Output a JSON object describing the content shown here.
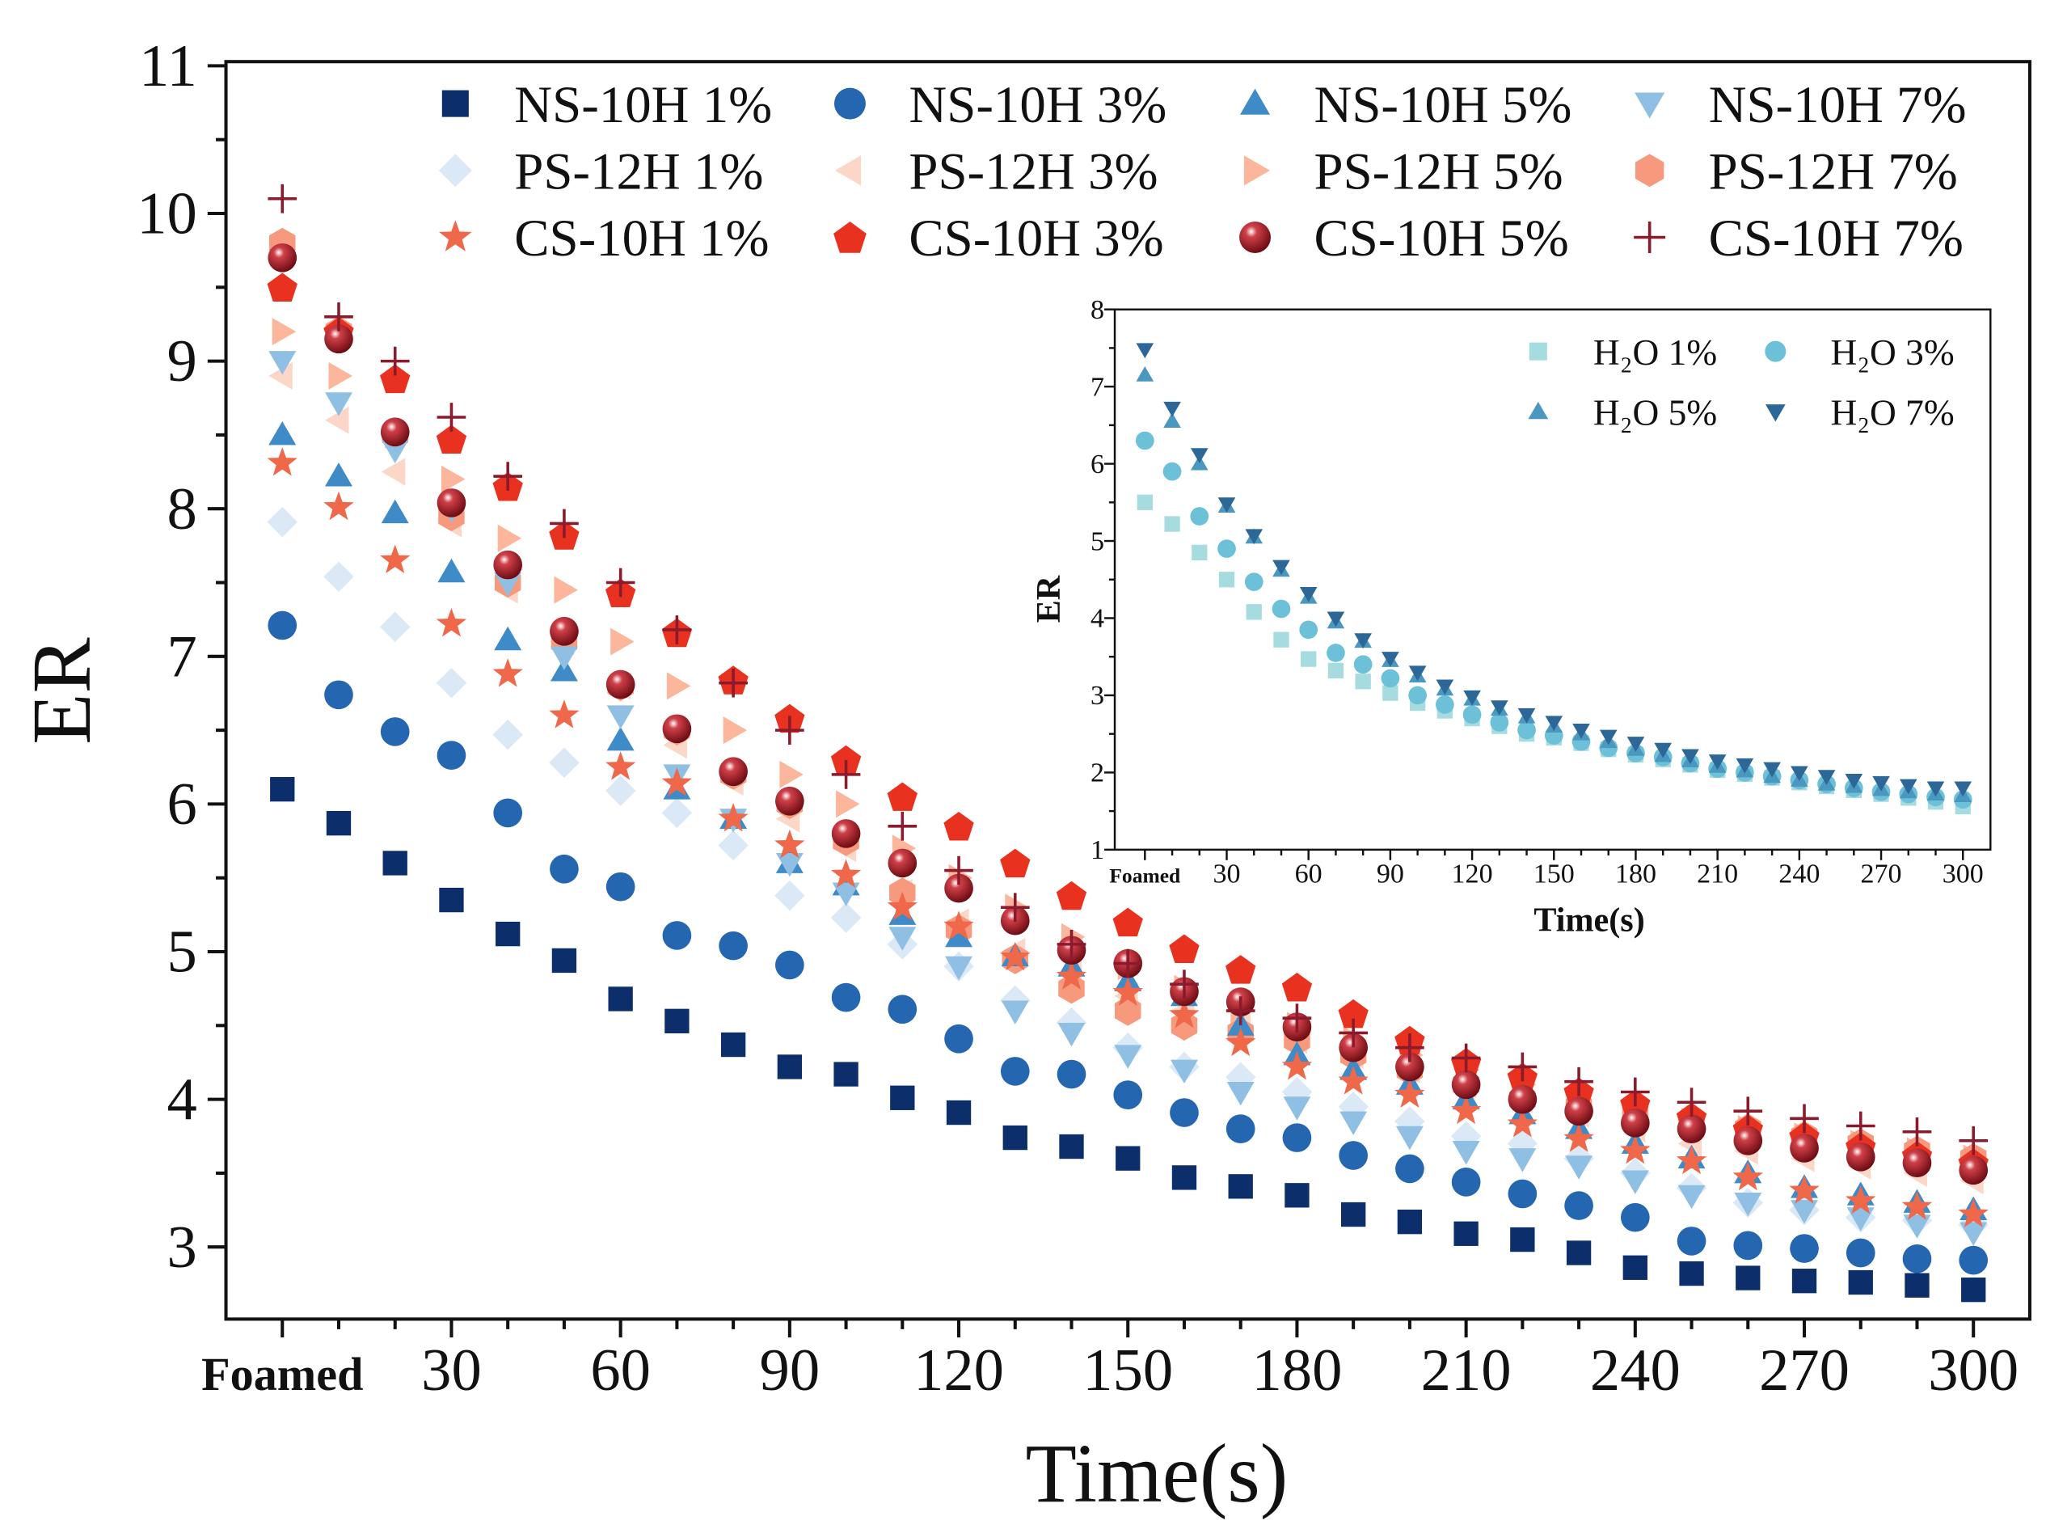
{
  "chart_data": {
    "type": "scatter",
    "xlabel": "Time(s)",
    "ylabel": "ER",
    "xlim": [
      0,
      300
    ],
    "ylim": [
      3,
      11
    ],
    "x_ticks": [
      "Foamed",
      "30",
      "60",
      "90",
      "120",
      "150",
      "180",
      "210",
      "240",
      "270",
      "300"
    ],
    "y_ticks": [
      "3",
      "4",
      "5",
      "6",
      "7",
      "8",
      "9",
      "10",
      "11"
    ],
    "x": [
      0,
      10,
      20,
      30,
      40,
      50,
      60,
      70,
      80,
      90,
      100,
      110,
      120,
      130,
      140,
      150,
      160,
      170,
      180,
      190,
      200,
      210,
      220,
      230,
      240,
      250,
      260,
      270,
      280,
      290,
      300
    ],
    "legend_position": "top",
    "series": [
      {
        "name": "NS-10H 1%",
        "marker": "square",
        "color": "#0c2e6a",
        "values": [
          6.1,
          5.87,
          5.6,
          5.35,
          5.12,
          4.94,
          4.68,
          4.53,
          4.37,
          4.22,
          4.17,
          4.01,
          3.91,
          3.74,
          3.68,
          3.6,
          3.47,
          3.41,
          3.35,
          3.22,
          3.17,
          3.09,
          3.05,
          2.96,
          2.86,
          2.82,
          2.79,
          2.77,
          2.76,
          2.74,
          2.71
        ]
      },
      {
        "name": "NS-10H 3%",
        "marker": "circle",
        "color": "#2466b0",
        "values": [
          7.21,
          6.74,
          6.49,
          6.33,
          5.94,
          5.56,
          5.44,
          5.11,
          5.04,
          4.91,
          4.69,
          4.61,
          4.41,
          4.19,
          4.17,
          4.03,
          3.91,
          3.8,
          3.74,
          3.62,
          3.53,
          3.44,
          3.36,
          3.28,
          3.2,
          3.04,
          3.01,
          2.99,
          2.96,
          2.92,
          2.91
        ]
      },
      {
        "name": "NS-10H 5%",
        "marker": "triangle-up",
        "color": "#3f8bc7",
        "values": [
          8.5,
          8.22,
          7.97,
          7.57,
          7.11,
          6.9,
          6.43,
          6.1,
          5.9,
          5.6,
          5.45,
          5.25,
          5.1,
          4.97,
          4.9,
          4.8,
          4.7,
          4.5,
          4.3,
          4.2,
          4.1,
          4.0,
          3.9,
          3.8,
          3.7,
          3.6,
          3.5,
          3.4,
          3.35,
          3.3,
          3.25
        ]
      },
      {
        "name": "NS-10H 7%",
        "marker": "triangle-down",
        "color": "#8fc0e4",
        "values": [
          9.0,
          8.72,
          8.4,
          8.0,
          7.5,
          7.0,
          6.6,
          6.2,
          5.9,
          5.6,
          5.4,
          5.1,
          4.9,
          4.6,
          4.45,
          4.3,
          4.2,
          4.05,
          3.95,
          3.85,
          3.75,
          3.65,
          3.6,
          3.55,
          3.45,
          3.35,
          3.3,
          3.25,
          3.2,
          3.15,
          3.1
        ]
      },
      {
        "name": "PS-12H 1%",
        "marker": "diamond",
        "color": "#dbe8f6",
        "values": [
          7.91,
          7.54,
          7.2,
          6.82,
          6.47,
          6.28,
          6.09,
          5.94,
          5.72,
          5.38,
          5.23,
          5.05,
          4.9,
          4.67,
          4.52,
          4.35,
          4.22,
          4.15,
          4.05,
          3.95,
          3.85,
          3.75,
          3.7,
          3.6,
          3.5,
          3.4,
          3.3,
          3.25,
          3.2,
          3.18,
          3.15
        ]
      },
      {
        "name": "PS-12H 3%",
        "marker": "triangle-left",
        "color": "#fcd6c6",
        "values": [
          8.9,
          8.6,
          8.25,
          7.9,
          7.45,
          7.1,
          6.8,
          6.4,
          6.15,
          5.9,
          5.7,
          5.4,
          5.2,
          5.0,
          4.85,
          4.7,
          4.6,
          4.5,
          4.4,
          4.3,
          4.2,
          4.1,
          4.0,
          3.9,
          3.8,
          3.7,
          3.65,
          3.6,
          3.55,
          3.5,
          3.45
        ]
      },
      {
        "name": "PS-12H 5%",
        "marker": "triangle-right",
        "color": "#fbb69c",
        "values": [
          9.2,
          8.9,
          8.5,
          8.2,
          7.8,
          7.45,
          7.1,
          6.8,
          6.5,
          6.2,
          6.0,
          5.7,
          5.5,
          5.3,
          5.1,
          4.9,
          4.75,
          4.6,
          4.5,
          4.4,
          4.3,
          4.2,
          4.1,
          4.0,
          3.9,
          3.85,
          3.8,
          3.75,
          3.7,
          3.65,
          3.6
        ]
      },
      {
        "name": "PS-12H 7%",
        "marker": "hexagon",
        "color": "#f6997c",
        "values": [
          9.8,
          9.2,
          8.5,
          7.95,
          7.5,
          7.1,
          6.8,
          6.5,
          6.2,
          6.0,
          5.75,
          5.4,
          5.15,
          4.95,
          4.75,
          4.6,
          4.5,
          4.45,
          4.4,
          4.3,
          4.2,
          4.1,
          4.0,
          3.95,
          3.9,
          3.85,
          3.8,
          3.75,
          3.7,
          3.65,
          3.6
        ]
      },
      {
        "name": "CS-10H 1%",
        "marker": "star",
        "color": "#f0684a",
        "values": [
          8.31,
          8.01,
          7.65,
          7.22,
          6.88,
          6.6,
          6.25,
          6.14,
          5.9,
          5.72,
          5.52,
          5.3,
          5.17,
          4.96,
          4.83,
          4.72,
          4.57,
          4.38,
          4.22,
          4.12,
          4.03,
          3.92,
          3.83,
          3.73,
          3.65,
          3.58,
          3.47,
          3.38,
          3.31,
          3.27,
          3.22
        ]
      },
      {
        "name": "CS-10H 3%",
        "marker": "pentagon",
        "color": "#e8311e",
        "values": [
          9.5,
          9.2,
          8.88,
          8.47,
          8.15,
          7.82,
          7.43,
          7.16,
          6.84,
          6.58,
          6.3,
          6.05,
          5.85,
          5.6,
          5.38,
          5.2,
          5.02,
          4.88,
          4.76,
          4.58,
          4.4,
          4.25,
          4.15,
          4.05,
          3.97,
          3.88,
          3.8,
          3.75,
          3.68,
          3.62,
          3.57
        ]
      },
      {
        "name": "CS-10H 5%",
        "marker": "ball",
        "color": "#a3141e",
        "values": [
          9.7,
          9.15,
          8.52,
          8.04,
          7.62,
          7.17,
          6.81,
          6.51,
          6.22,
          6.02,
          5.8,
          5.6,
          5.43,
          5.21,
          5.01,
          4.92,
          4.73,
          4.66,
          4.49,
          4.35,
          4.22,
          4.1,
          4.0,
          3.92,
          3.84,
          3.8,
          3.72,
          3.67,
          3.61,
          3.57,
          3.52
        ]
      },
      {
        "name": "CS-10H 7%",
        "marker": "plus",
        "color": "#8a1a2c",
        "values": [
          10.1,
          9.3,
          9.0,
          8.62,
          8.22,
          7.9,
          7.5,
          7.18,
          6.82,
          6.5,
          6.2,
          5.85,
          5.55,
          5.3,
          5.05,
          4.92,
          4.78,
          4.6,
          4.55,
          4.45,
          4.35,
          4.28,
          4.22,
          4.12,
          4.05,
          3.98,
          3.92,
          3.87,
          3.82,
          3.78,
          3.72
        ]
      }
    ],
    "inset": {
      "type": "scatter",
      "xlabel": "Time(s)",
      "ylabel": "ER",
      "xlim": [
        0,
        300
      ],
      "ylim": [
        1,
        8
      ],
      "x_ticks": [
        "Foamed",
        "30",
        "60",
        "90",
        "120",
        "150",
        "180",
        "210",
        "240",
        "270",
        "300"
      ],
      "y_ticks": [
        "1",
        "2",
        "3",
        "4",
        "5",
        "6",
        "7",
        "8"
      ],
      "x": [
        0,
        10,
        20,
        30,
        40,
        50,
        60,
        70,
        80,
        90,
        100,
        110,
        120,
        130,
        140,
        150,
        160,
        170,
        180,
        190,
        200,
        210,
        220,
        230,
        240,
        250,
        260,
        270,
        280,
        290,
        300
      ],
      "series": [
        {
          "name": "H₂O 1%",
          "marker": "square",
          "color": "#a6dbe0",
          "values": [
            5.5,
            5.22,
            4.85,
            4.5,
            4.08,
            3.72,
            3.47,
            3.32,
            3.18,
            3.03,
            2.9,
            2.8,
            2.7,
            2.6,
            2.5,
            2.45,
            2.38,
            2.3,
            2.23,
            2.17,
            2.1,
            2.03,
            1.98,
            1.93,
            1.87,
            1.82,
            1.77,
            1.72,
            1.67,
            1.62,
            1.56
          ]
        },
        {
          "name": "H₂O 3%",
          "marker": "circle",
          "color": "#6cc0d7",
          "values": [
            6.3,
            5.9,
            5.32,
            4.9,
            4.47,
            4.12,
            3.85,
            3.55,
            3.4,
            3.22,
            3.0,
            2.88,
            2.75,
            2.65,
            2.55,
            2.48,
            2.4,
            2.32,
            2.25,
            2.2,
            2.12,
            2.05,
            2.0,
            1.95,
            1.9,
            1.85,
            1.8,
            1.75,
            1.72,
            1.68,
            1.65
          ]
        },
        {
          "name": "H₂O 5%",
          "marker": "triangle-up",
          "color": "#4a98bf",
          "values": [
            7.15,
            6.55,
            6.0,
            5.45,
            5.05,
            4.62,
            4.27,
            3.95,
            3.7,
            3.45,
            3.25,
            3.08,
            2.95,
            2.82,
            2.72,
            2.6,
            2.5,
            2.4,
            2.3,
            2.22,
            2.15,
            2.08,
            2.02,
            1.95,
            1.9,
            1.85,
            1.82,
            1.78,
            1.75,
            1.72,
            1.7
          ]
        },
        {
          "name": "H₂O 7%",
          "marker": "triangle-down",
          "color": "#2d6797",
          "values": [
            7.48,
            6.72,
            6.12,
            5.48,
            5.07,
            4.67,
            4.32,
            4.0,
            3.72,
            3.48,
            3.3,
            3.12,
            2.98,
            2.85,
            2.75,
            2.65,
            2.55,
            2.47,
            2.38,
            2.3,
            2.22,
            2.15,
            2.1,
            2.05,
            2.0,
            1.95,
            1.9,
            1.87,
            1.83,
            1.8,
            1.8
          ]
        }
      ]
    }
  }
}
